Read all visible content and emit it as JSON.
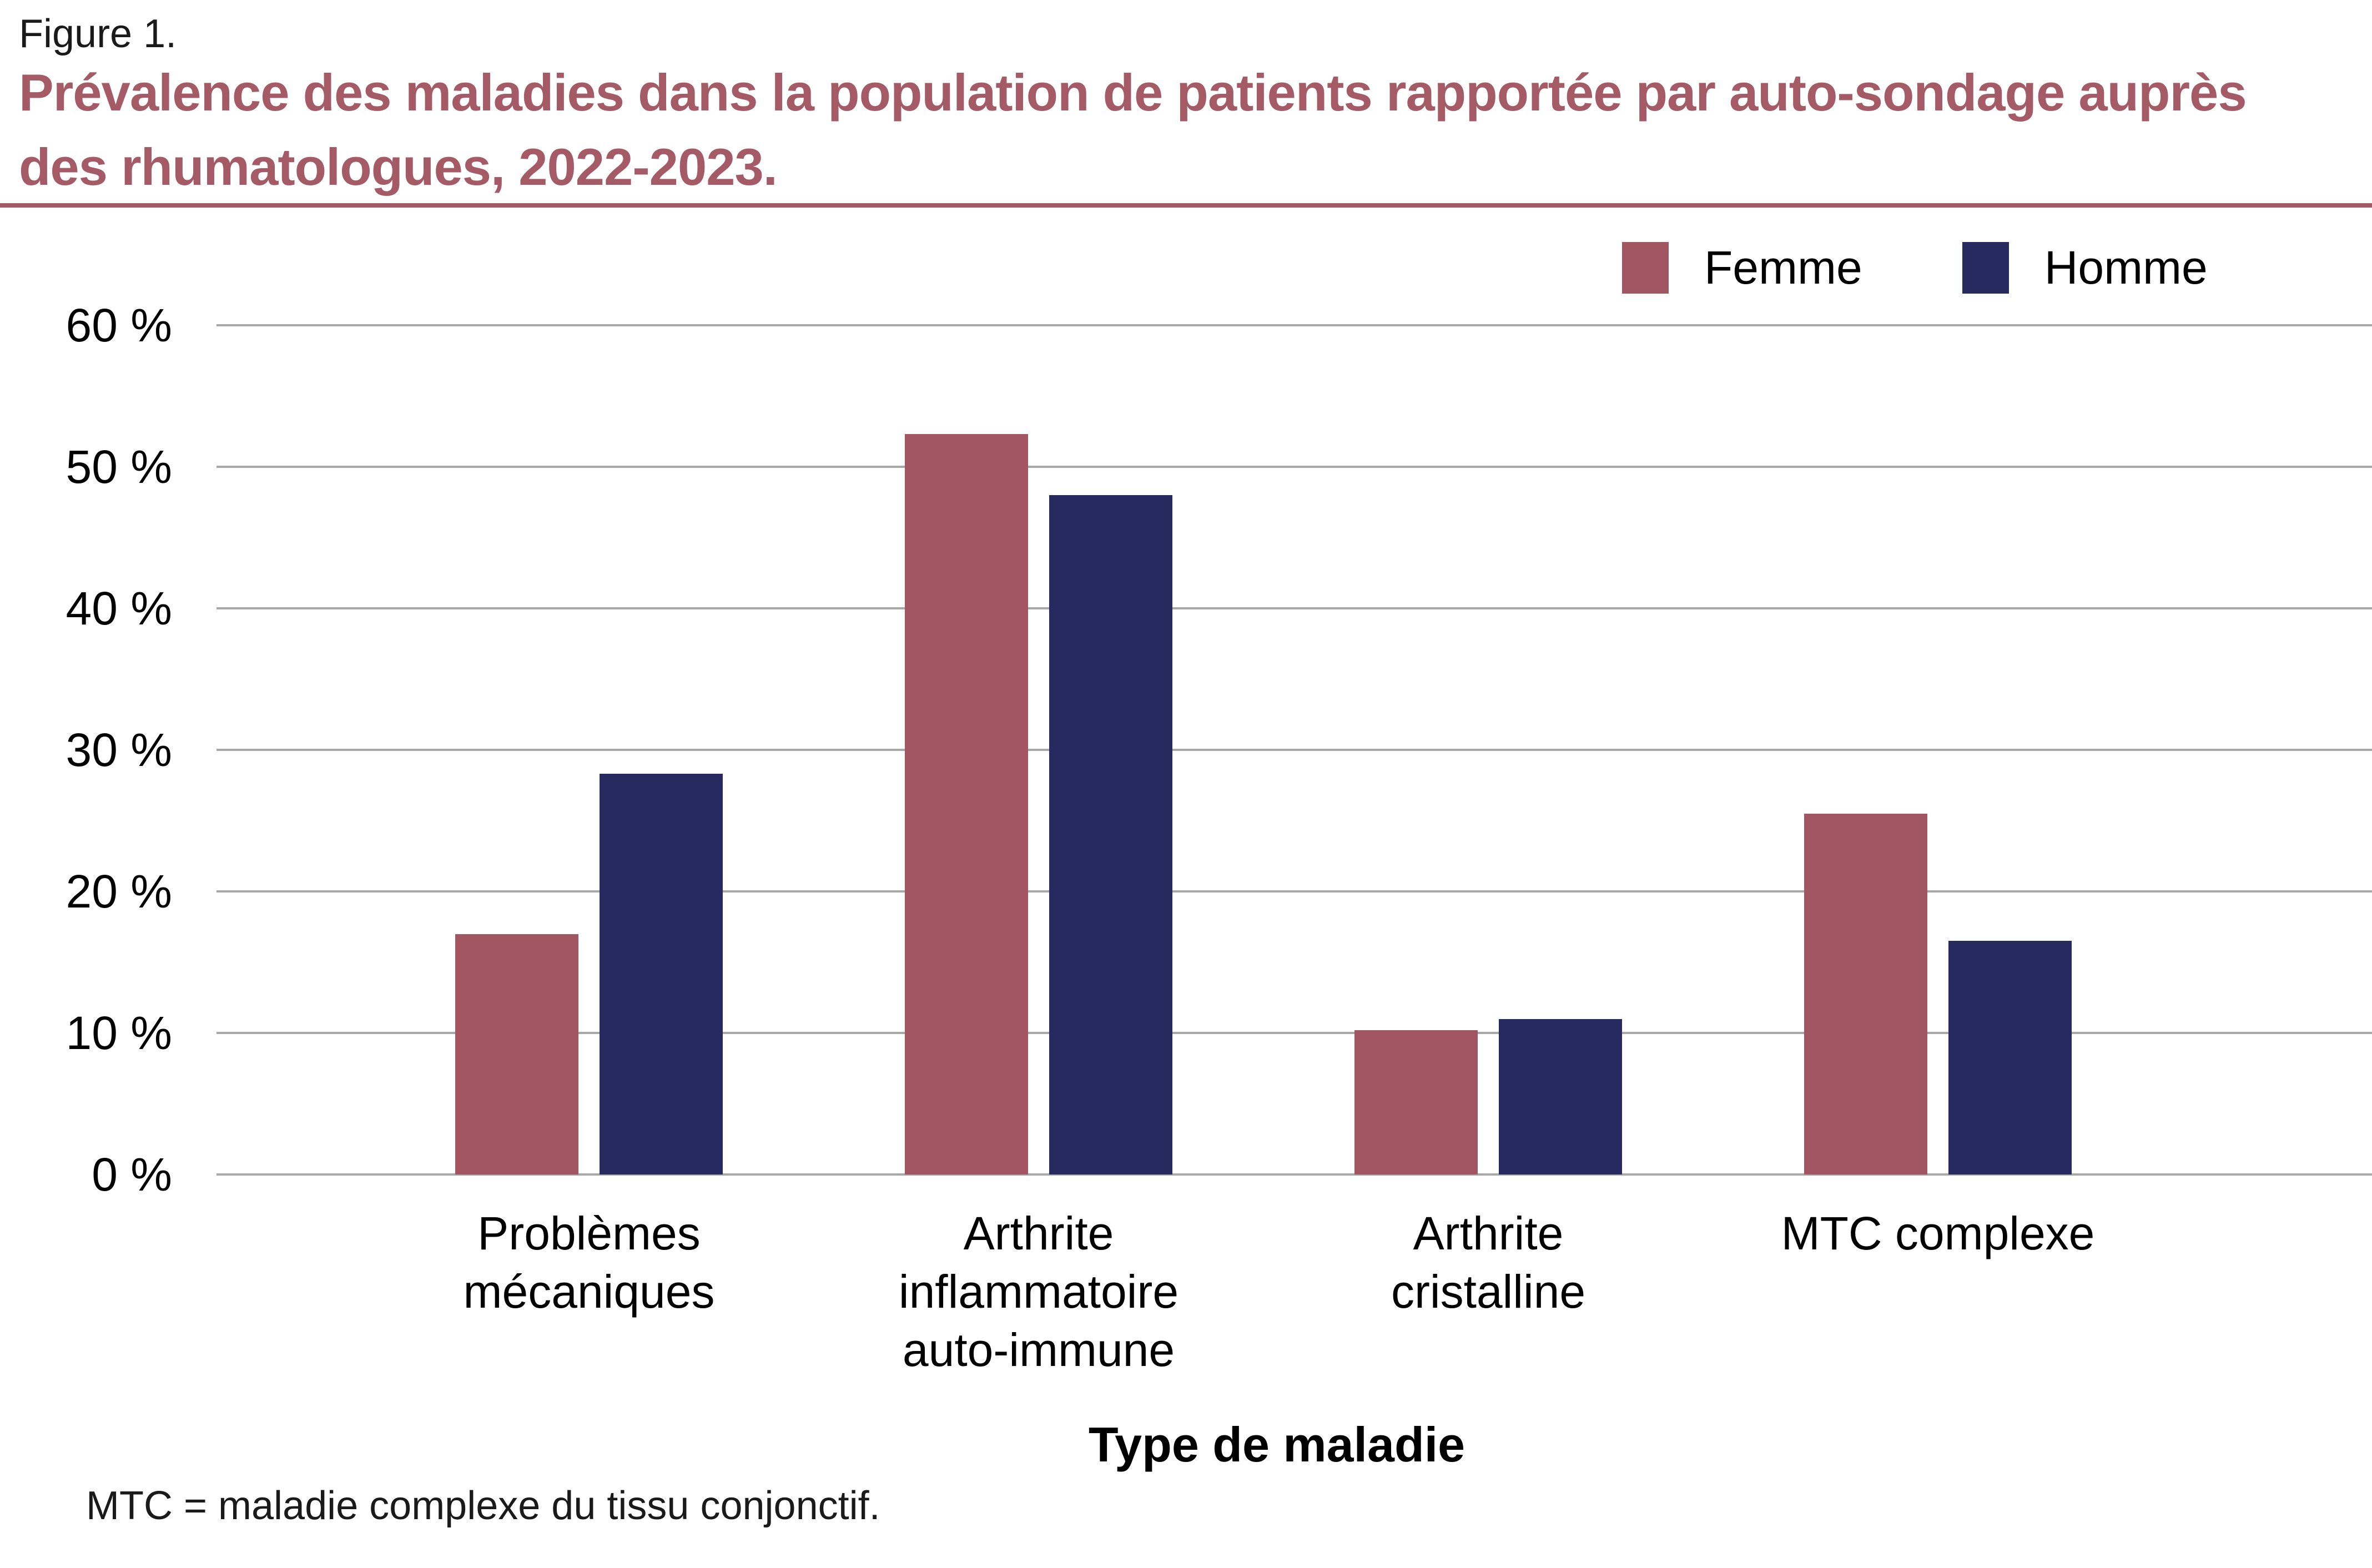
{
  "figure_label": "Figure 1.",
  "title_lines": [
    "Prévalence des maladies dans la population de patients rapportée par auto-sondage auprès",
    "des rhumatologues, 2022-2023."
  ],
  "x_axis_title": "Type de maladie",
  "footnote": "MTC = maladie complexe du tissu conjonctif.",
  "colors": {
    "title": "#a55b66",
    "title_rule": "#a45a64",
    "grid": "#a8a8a8",
    "femme": "#a25661",
    "homme": "#262a5f"
  },
  "chart_data": {
    "type": "bar",
    "title": "Prévalence des maladies dans la population de patients rapportée par auto-sondage auprès des rhumatologues, 2022-2023.",
    "xlabel": "Type de maladie",
    "ylabel": "",
    "ylim": [
      0,
      60
    ],
    "grid": true,
    "legend_position": "top-right",
    "categories": [
      "Problèmes\nmécaniques",
      "Arthrite\ninflammatoire\nauto-immune",
      "Arthrite\ncristalline",
      "MTC complexe"
    ],
    "series": [
      {
        "name": "Femme",
        "color": "#a25661",
        "values": [
          17,
          52.3,
          10.2,
          25.5
        ]
      },
      {
        "name": "Homme",
        "color": "#262a5f",
        "values": [
          28.3,
          48,
          11,
          16.5
        ]
      }
    ],
    "y_ticks": [
      {
        "value": 0,
        "label": "0 %"
      },
      {
        "value": 10,
        "label": "10 %"
      },
      {
        "value": 20,
        "label": "20 %"
      },
      {
        "value": 30,
        "label": "30 %"
      },
      {
        "value": 40,
        "label": "40 %"
      },
      {
        "value": 50,
        "label": "50 %"
      },
      {
        "value": 60,
        "label": "60 %"
      }
    ]
  }
}
